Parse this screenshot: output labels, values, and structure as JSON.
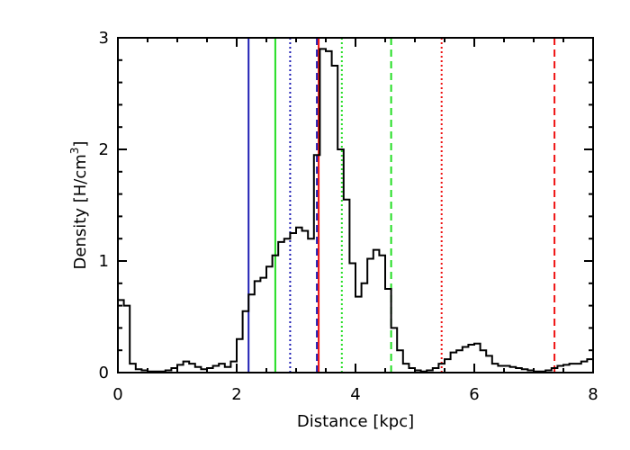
{
  "chart_data": {
    "type": "line",
    "xlabel": "Distance [kpc]",
    "ylabel": {
      "prefix": "Density [H/cm",
      "superscript": "3",
      "suffix": "]"
    },
    "xlim": [
      0,
      8
    ],
    "ylim": [
      0,
      3
    ],
    "x_ticks": [
      0,
      2,
      4,
      6,
      8
    ],
    "y_ticks": [
      0,
      1,
      2,
      3
    ],
    "x_tick_labels": [
      "0",
      "2",
      "4",
      "6",
      "8"
    ],
    "y_tick_labels": [
      "0",
      "1",
      "2",
      "3"
    ],
    "grid": false,
    "histogram": {
      "bin_edges": [
        0.0,
        0.1,
        0.2,
        0.3,
        0.4,
        0.5,
        0.6,
        0.7,
        0.8,
        0.9,
        1.0,
        1.1,
        1.2,
        1.3,
        1.4,
        1.5,
        1.6,
        1.7,
        1.8,
        1.9,
        2.0,
        2.1,
        2.2,
        2.3,
        2.4,
        2.5,
        2.6,
        2.7,
        2.8,
        2.9,
        3.0,
        3.1,
        3.2,
        3.3,
        3.4,
        3.5,
        3.6,
        3.7,
        3.8,
        3.9,
        4.0,
        4.1,
        4.2,
        4.3,
        4.4,
        4.5,
        4.6,
        4.7,
        4.8,
        4.9,
        5.0,
        5.1,
        5.2,
        5.3,
        5.4,
        5.5,
        5.6,
        5.7,
        5.8,
        5.9,
        6.0,
        6.1,
        6.2,
        6.3,
        6.4,
        6.5,
        6.6,
        6.7,
        6.8,
        6.9,
        7.0,
        7.1,
        7.2,
        7.3,
        7.4,
        7.5,
        7.6,
        7.7,
        7.8,
        7.9,
        8.0
      ],
      "values": [
        0.65,
        0.6,
        0.08,
        0.03,
        0.02,
        0.01,
        0.01,
        0.01,
        0.02,
        0.04,
        0.07,
        0.1,
        0.08,
        0.05,
        0.03,
        0.04,
        0.06,
        0.08,
        0.05,
        0.1,
        0.3,
        0.55,
        0.7,
        0.82,
        0.85,
        0.95,
        1.05,
        1.17,
        1.2,
        1.25,
        1.3,
        1.27,
        1.2,
        1.95,
        2.9,
        2.88,
        2.75,
        2.0,
        1.55,
        0.98,
        0.68,
        0.8,
        1.02,
        1.1,
        1.05,
        0.75,
        0.4,
        0.2,
        0.08,
        0.04,
        0.02,
        0.01,
        0.02,
        0.04,
        0.08,
        0.12,
        0.18,
        0.2,
        0.23,
        0.25,
        0.26,
        0.2,
        0.15,
        0.08,
        0.06,
        0.06,
        0.05,
        0.04,
        0.03,
        0.02,
        0.01,
        0.01,
        0.02,
        0.04,
        0.06,
        0.07,
        0.08,
        0.08,
        0.1,
        0.12
      ],
      "initial_point": [
        0.0,
        0.2
      ],
      "color": "#000000"
    },
    "vertical_lines": [
      {
        "x": 2.2,
        "color": "#1f1fb4",
        "style": "solid"
      },
      {
        "x": 2.65,
        "color": "#22dd22",
        "style": "solid"
      },
      {
        "x": 2.9,
        "color": "#1f1fb4",
        "style": "dotted"
      },
      {
        "x": 3.35,
        "color": "#1f1fb4",
        "style": "dashed"
      },
      {
        "x": 3.38,
        "color": "#ee1111",
        "style": "solid"
      },
      {
        "x": 3.77,
        "color": "#22dd22",
        "style": "dotted"
      },
      {
        "x": 4.6,
        "color": "#22dd22",
        "style": "dashed"
      },
      {
        "x": 5.45,
        "color": "#ee1111",
        "style": "dotted"
      },
      {
        "x": 7.35,
        "color": "#ee1111",
        "style": "dashed"
      }
    ]
  }
}
